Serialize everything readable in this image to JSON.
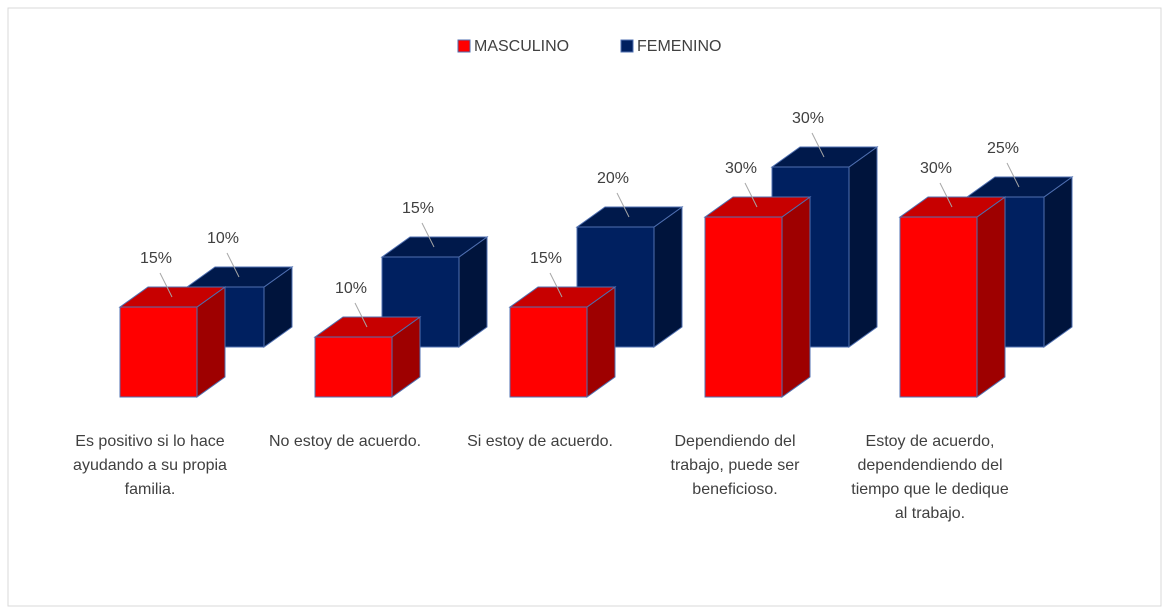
{
  "chart_data": {
    "type": "bar3d",
    "categories": [
      "Es positivo si lo hace ayudando a su propia familia.",
      "No estoy de acuerdo.",
      "Si estoy de acuerdo.",
      "Dependiendo del trabajo, puede ser beneficioso.",
      "Estoy de acuerdo, dependendiendo del tiempo que le dedique al trabajo."
    ],
    "series": [
      {
        "name": "MASCULINO",
        "color": "#ff0000",
        "values": [
          15,
          10,
          15,
          30,
          30
        ],
        "value_labels": [
          "15%",
          "10%",
          "15%",
          "30%",
          "30%"
        ]
      },
      {
        "name": "FEMENINO",
        "color": "#002060",
        "values": [
          10,
          15,
          20,
          30,
          25
        ],
        "value_labels": [
          "10%",
          "15%",
          "20%",
          "30%",
          "25%"
        ]
      }
    ],
    "legend": "top"
  }
}
